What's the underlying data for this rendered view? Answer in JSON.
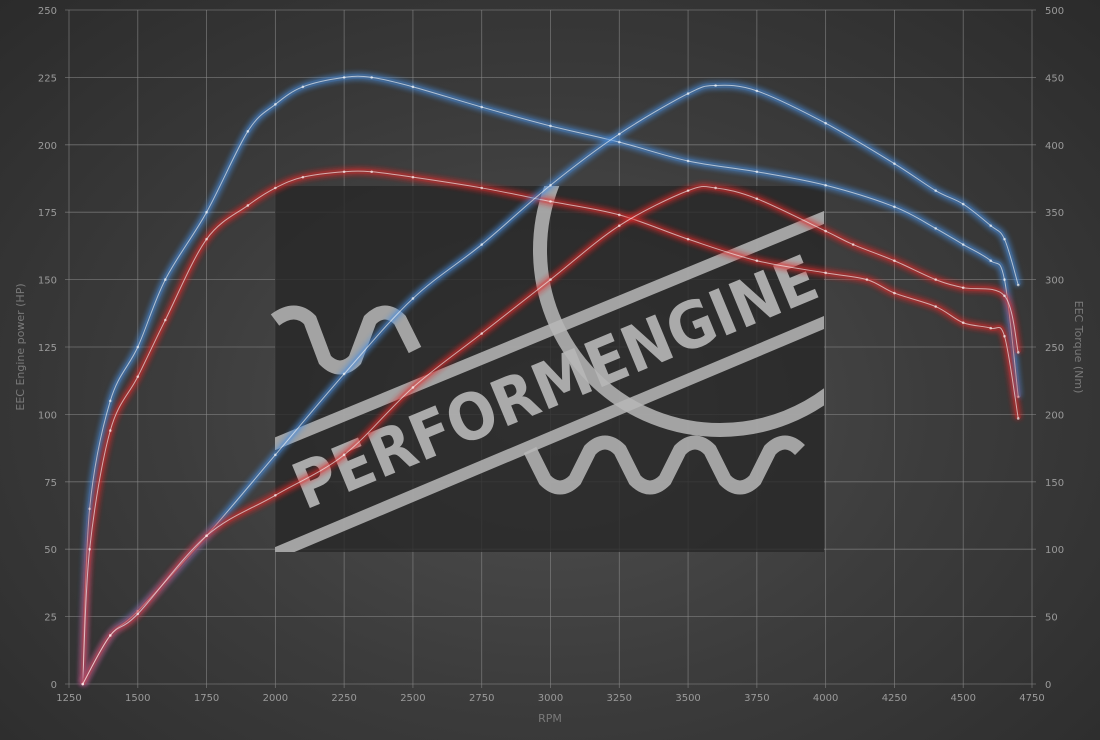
{
  "chart_data": {
    "type": "line",
    "title": "",
    "xlabel": "RPM",
    "ylabel_left": "EEC Engine power (HP)",
    "ylabel_right": "EEC Torque (Nm)",
    "xlim": [
      1250,
      4750
    ],
    "ylim_left": [
      0,
      250
    ],
    "ylim_right": [
      0,
      500
    ],
    "x_ticks": [
      1250,
      1500,
      1750,
      2000,
      2250,
      2500,
      2750,
      3000,
      3250,
      3500,
      3750,
      4000,
      4250,
      4500,
      4750
    ],
    "y_ticks_left": [
      0,
      25,
      50,
      75,
      100,
      125,
      150,
      175,
      200,
      225,
      250
    ],
    "y_ticks_right": [
      0,
      50,
      100,
      150,
      200,
      250,
      300,
      350,
      400,
      450,
      500
    ],
    "grid": true,
    "watermark": "PERFORMENGINE",
    "colors": {
      "tuned": "#4a8fe0",
      "stock": "#e02a2a"
    },
    "series": [
      {
        "key": "tuned-torque",
        "axis": "right",
        "color": "#4a8fe0",
        "x": [
          1300,
          1325,
          1400,
          1500,
          1600,
          1750,
          1900,
          2000,
          2100,
          2250,
          2350,
          2500,
          2750,
          3000,
          3250,
          3500,
          3750,
          4000,
          4250,
          4400,
          4500,
          4600,
          4650,
          4700
        ],
        "values": [
          0,
          130,
          210,
          250,
          300,
          350,
          410,
          430,
          443,
          450,
          450,
          443,
          428,
          414,
          402,
          388,
          380,
          370,
          354,
          338,
          326,
          314,
          300,
          213
        ]
      },
      {
        "key": "stock-torque",
        "axis": "right",
        "color": "#e02a2a",
        "x": [
          1300,
          1325,
          1400,
          1500,
          1600,
          1750,
          1900,
          2000,
          2100,
          2250,
          2350,
          2500,
          2750,
          3000,
          3250,
          3500,
          3750,
          4000,
          4150,
          4250,
          4400,
          4500,
          4600,
          4650,
          4700
        ],
        "values": [
          0,
          100,
          188,
          228,
          270,
          330,
          355,
          368,
          376,
          380,
          380,
          376,
          368,
          358,
          348,
          330,
          314,
          305,
          300,
          290,
          280,
          268,
          264,
          258,
          197
        ]
      },
      {
        "key": "tuned-power",
        "axis": "left",
        "color": "#4a8fe0",
        "x": [
          1300,
          1400,
          1500,
          1750,
          2000,
          2250,
          2500,
          2750,
          3000,
          3250,
          3500,
          3600,
          3750,
          4000,
          4250,
          4400,
          4500,
          4600,
          4650,
          4700
        ],
        "values": [
          0,
          18,
          27,
          55,
          85,
          115,
          143,
          163,
          185,
          204,
          219,
          222,
          220,
          208,
          193,
          183,
          178,
          170,
          165,
          148
        ]
      },
      {
        "key": "stock-power",
        "axis": "left",
        "color": "#e02a2a",
        "x": [
          1300,
          1400,
          1500,
          1750,
          2000,
          2250,
          2500,
          2750,
          3000,
          3250,
          3500,
          3600,
          3750,
          4000,
          4100,
          4250,
          4400,
          4500,
          4650,
          4700
        ],
        "values": [
          0,
          18,
          26,
          55,
          70,
          85,
          110,
          130,
          150,
          170,
          183,
          184,
          180,
          168,
          163,
          157,
          150,
          147,
          144,
          123
        ]
      }
    ]
  }
}
